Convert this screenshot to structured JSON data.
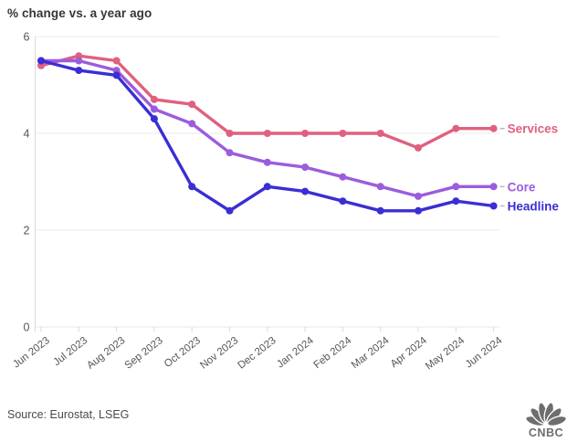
{
  "title": "% change vs. a year ago",
  "footer": {
    "source": "Source: Eurostat, LSEG"
  },
  "logo": {
    "text": "CNBC"
  },
  "colors": {
    "services": "#e0607f",
    "core": "#9b5cdd",
    "headline": "#3a2ed4",
    "grid": "#e8e8e8",
    "axis": "#d8d8d8",
    "tick_text": "#555555",
    "title_text": "#363636",
    "source_text": "#4a4a4a",
    "legend_dash": "#b9b9b9",
    "logo_gray": "#6e6e6e",
    "background": "#ffffff"
  },
  "chart_data": {
    "type": "line",
    "title": "% change vs. a year ago",
    "xlabel": "",
    "ylabel": "",
    "categories": [
      "Jun 2023",
      "Jul 2023",
      "Aug 2023",
      "Sep 2023",
      "Oct 2023",
      "Nov 2023",
      "Dec 2023",
      "Jan 2024",
      "Feb 2024",
      "Mar 2024",
      "Apr 2024",
      "May 2024",
      "Jun 2024"
    ],
    "series": [
      {
        "name": "Services",
        "color_key": "services",
        "values": [
          5.4,
          5.6,
          5.5,
          4.7,
          4.6,
          4.0,
          4.0,
          4.0,
          4.0,
          4.0,
          3.7,
          4.1,
          4.1
        ]
      },
      {
        "name": "Core",
        "color_key": "core",
        "values": [
          5.5,
          5.5,
          5.3,
          4.5,
          4.2,
          3.6,
          3.4,
          3.3,
          3.1,
          2.9,
          2.7,
          2.9,
          2.9
        ]
      },
      {
        "name": "Headline",
        "color_key": "headline",
        "values": [
          5.5,
          5.3,
          5.2,
          4.3,
          2.9,
          2.4,
          2.9,
          2.8,
          2.6,
          2.4,
          2.4,
          2.6,
          2.5
        ]
      }
    ],
    "ylim": [
      0,
      6
    ],
    "yticks": [
      0,
      2,
      4,
      6
    ],
    "grid": true,
    "legend_position": "right-end-labels"
  }
}
